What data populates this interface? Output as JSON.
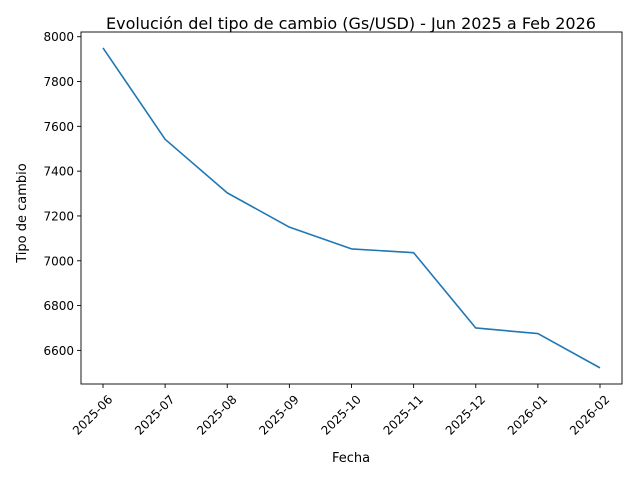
{
  "chart_data": {
    "type": "line",
    "title": "Evolución del tipo de cambio (Gs/USD) - Jun 2025 a Feb 2026",
    "xlabel": "Fecha",
    "ylabel": "Tipo de cambio",
    "categories": [
      "2025-06",
      "2025-07",
      "2025-08",
      "2025-09",
      "2025-10",
      "2025-11",
      "2025-12",
      "2026-01",
      "2026-02"
    ],
    "series": [
      {
        "values": [
          7950,
          7542,
          7303,
          7150,
          7053,
          7036,
          6700,
          6675,
          6522
        ],
        "color": "#1f77b4"
      }
    ],
    "yticks": [
      6600,
      6800,
      7000,
      7200,
      7400,
      7600,
      7800,
      8000
    ],
    "ylim": [
      6450,
      8021
    ],
    "grid": false,
    "legend": "none"
  }
}
